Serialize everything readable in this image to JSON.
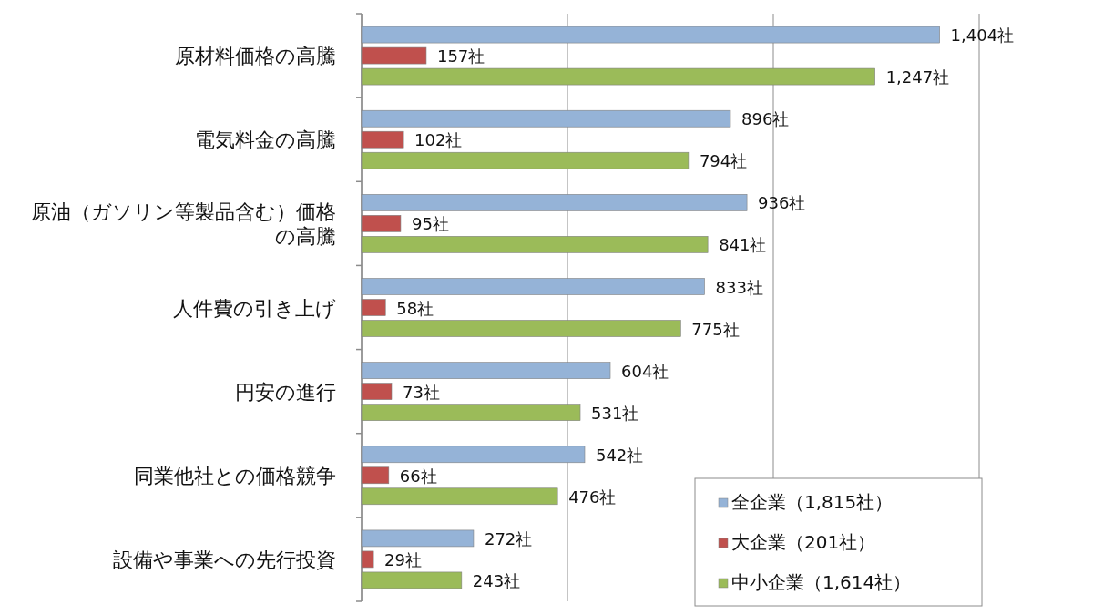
{
  "chart_data": {
    "type": "bar",
    "orientation": "horizontal",
    "categories": [
      "原材料価格の高騰",
      "電気料金の高騰",
      "原油（ガソリン等製品含む）価格の高騰",
      "人件費の引き上げ",
      "円安の進行",
      "同業他社との価格競争",
      "設備や事業への先行投資"
    ],
    "series": [
      {
        "name": "全企業（1,815社）",
        "color": "#95b3d7",
        "values": [
          1404,
          896,
          936,
          833,
          604,
          542,
          272
        ],
        "value_labels": [
          "1,404社",
          "896社",
          "936社",
          "833社",
          "604社",
          "542社",
          "272社"
        ]
      },
      {
        "name": "大企業（201社）",
        "color": "#c0504d",
        "values": [
          157,
          102,
          95,
          58,
          73,
          66,
          29
        ],
        "value_labels": [
          "157社",
          "102社",
          "95社",
          "58社",
          "73社",
          "66社",
          "29社"
        ]
      },
      {
        "name": "中小企業（1,614社）",
        "color": "#9bbb59",
        "values": [
          1247,
          794,
          841,
          775,
          531,
          476,
          243
        ],
        "value_labels": [
          "1,247社",
          "794社",
          "841社",
          "775社",
          "531社",
          "476社",
          "243社"
        ]
      }
    ],
    "xlim": [
      0,
      1500
    ],
    "xticks": [
      {
        "value": 0,
        "label": null
      },
      {
        "value": 500,
        "label": null
      },
      {
        "value": 1000,
        "label": null
      },
      {
        "value": 1500,
        "label": null
      }
    ],
    "tick_labels": "y",
    "grid": "x",
    "legend": "bottom right"
  }
}
